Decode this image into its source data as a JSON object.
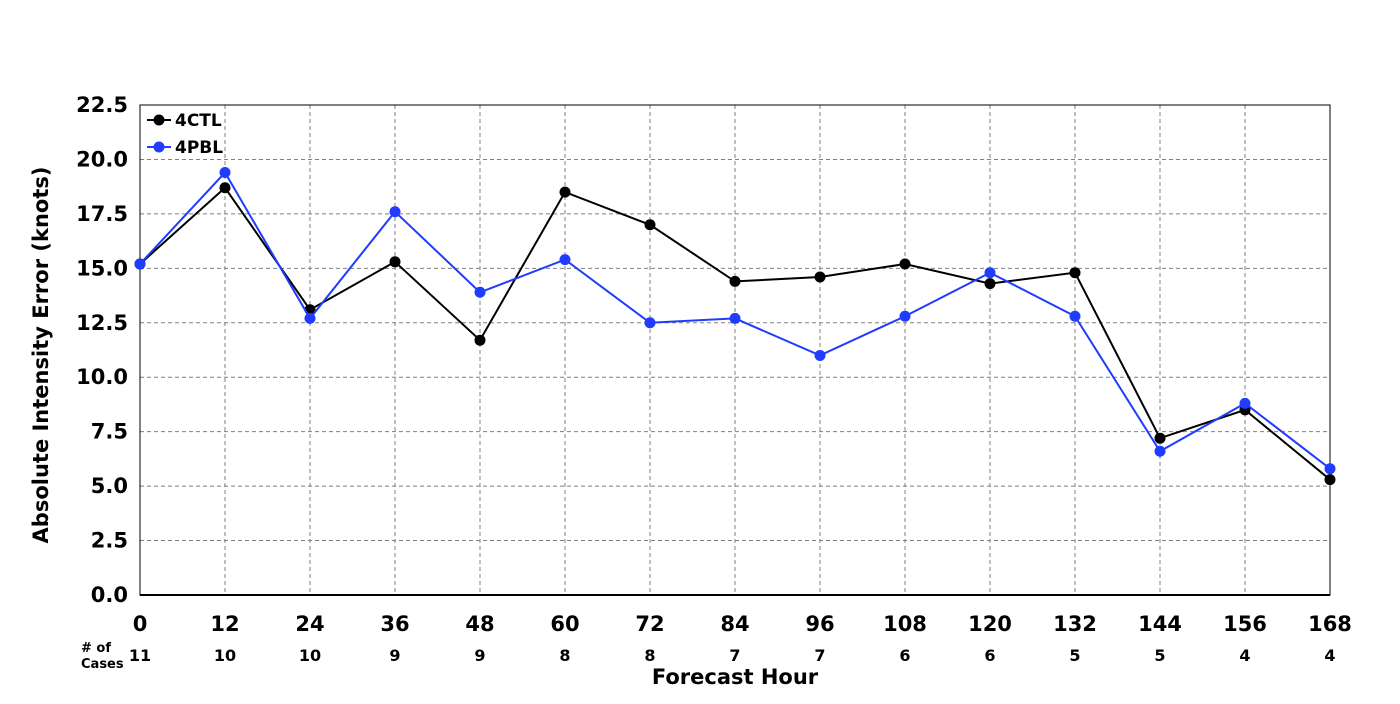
{
  "chart_data": {
    "type": "line",
    "title": "",
    "xlabel": "Forecast Hour",
    "ylabel": "Absolute Intensity Error (knots)",
    "x": [
      0,
      12,
      24,
      36,
      48,
      60,
      72,
      84,
      96,
      108,
      120,
      132,
      144,
      156,
      168
    ],
    "x_tick_labels": [
      "0",
      "12",
      "24",
      "36",
      "48",
      "60",
      "72",
      "84",
      "96",
      "108",
      "120",
      "132",
      "144",
      "156",
      "168"
    ],
    "xlim": [
      0,
      168
    ],
    "ylim": [
      0,
      22.5
    ],
    "y_ticks": [
      0,
      2.5,
      5,
      7.5,
      10,
      12.5,
      15,
      17.5,
      20,
      22.5
    ],
    "y_tick_labels": [
      "0.0",
      "2.5",
      "5.0",
      "7.5",
      "10.0",
      "12.5",
      "15.0",
      "17.5",
      "20.0",
      "22.5"
    ],
    "grid": true,
    "legend_position": "top-left",
    "cases_title_line1": "# of",
    "cases_title_line2": "Cases",
    "cases": [
      "11",
      "10",
      "10",
      "9",
      "9",
      "8",
      "8",
      "7",
      "7",
      "6",
      "6",
      "5",
      "5",
      "4",
      "4"
    ],
    "series": [
      {
        "name": "4CTL",
        "color": "#000000",
        "values": [
          15.2,
          18.7,
          13.1,
          15.3,
          11.7,
          18.5,
          17.0,
          14.4,
          14.6,
          15.2,
          14.3,
          14.8,
          7.2,
          8.5,
          5.3
        ]
      },
      {
        "name": "4PBL",
        "color": "#1f3cff",
        "values": [
          15.2,
          19.4,
          12.7,
          17.6,
          13.9,
          15.4,
          12.5,
          12.7,
          11.0,
          12.8,
          14.8,
          12.8,
          6.6,
          8.8,
          5.8
        ]
      }
    ]
  }
}
